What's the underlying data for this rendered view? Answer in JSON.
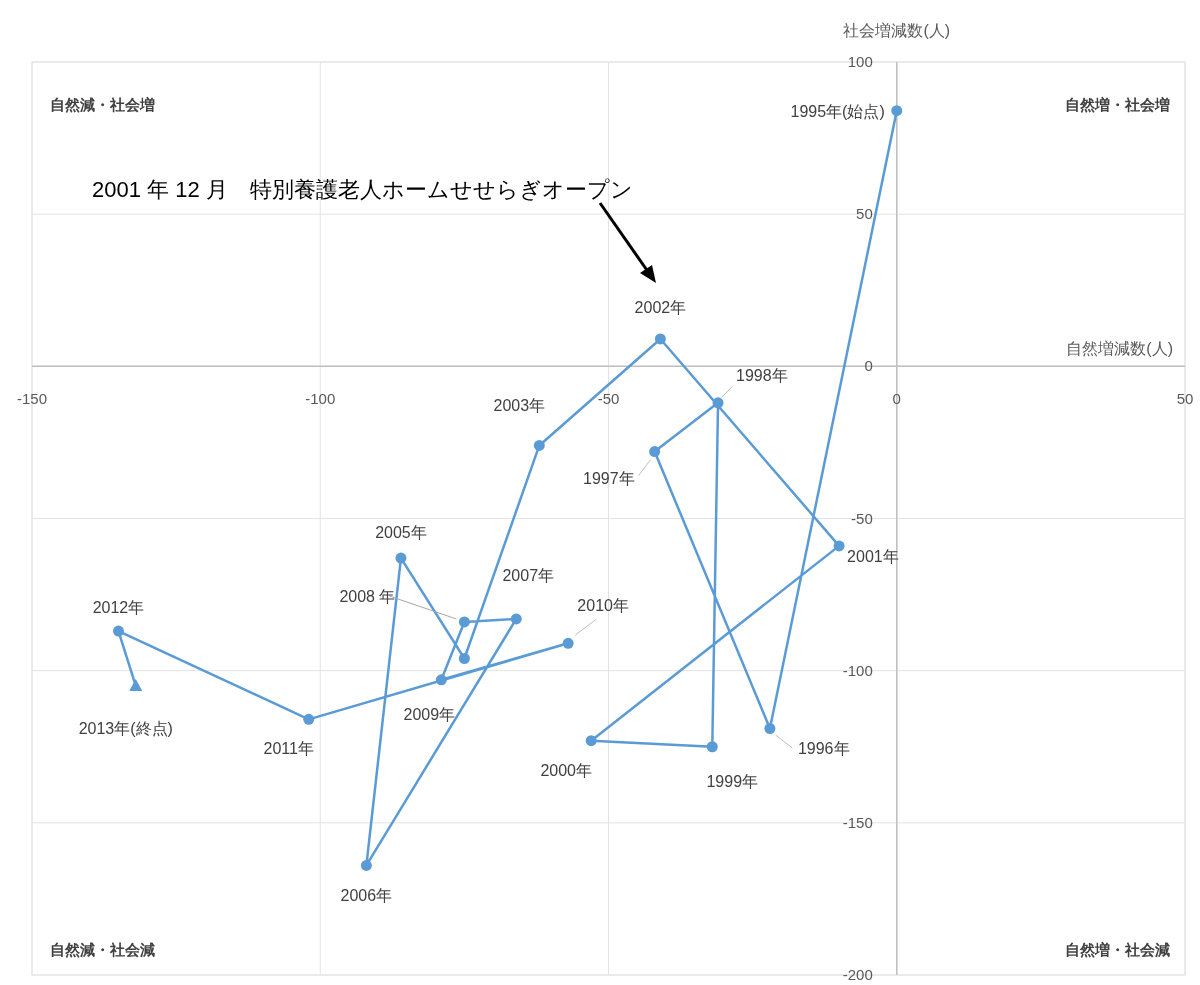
{
  "chart_data": {
    "type": "line",
    "xlabel": "自然増減数(人)",
    "ylabel": "社会増減数(人)",
    "x": [
      0,
      -22,
      -42,
      -31,
      -32,
      -53,
      -10,
      -41,
      -62,
      -75,
      -86,
      -92,
      -66,
      -75,
      -79,
      -57,
      -102,
      -135,
      -132
    ],
    "values": [
      84,
      -119,
      -28,
      -12,
      -125,
      -123,
      -59,
      9,
      -26,
      -96,
      -63,
      -164,
      -83,
      -84,
      -103,
      -91,
      -116,
      -87,
      -105
    ],
    "color": "#5b9bd5",
    "marker": "circle",
    "xlim": [
      -150,
      50
    ],
    "xticks": [
      -150,
      -100,
      -50,
      0,
      50
    ],
    "ylim": [
      -200,
      100
    ],
    "yticks": [
      -200,
      -150,
      -100,
      -50,
      0,
      50,
      100
    ],
    "grid": true,
    "annotations": [
      "自然減・社会増",
      "自然増・社会増",
      "自然減・社会減",
      "自然増・社会減",
      "2001 年 12 月　特別養護老人ホームせせらぎオープン",
      {
        "text": "1995年(始点)",
        "x": 0,
        "y": 84
      },
      {
        "text": "1996年",
        "x": -22,
        "y": -119
      },
      {
        "text": "1997年",
        "x": -42,
        "y": -28
      },
      {
        "text": "1998年",
        "x": -31,
        "y": -12
      },
      {
        "text": "1999年",
        "x": -32,
        "y": -125
      },
      {
        "text": "2000年",
        "x": -53,
        "y": -123
      },
      {
        "text": "2001年",
        "x": -10,
        "y": -59
      },
      {
        "text": "2002年",
        "x": -41,
        "y": 9
      },
      {
        "text": "2003年",
        "x": -62,
        "y": -26
      },
      {
        "text": "2005年",
        "x": -86,
        "y": -63
      },
      {
        "text": "2006年",
        "x": -92,
        "y": -164
      },
      {
        "text": "2007年",
        "x": -66,
        "y": -83
      },
      {
        "text": "2008 年",
        "x": -75,
        "y": -84
      },
      {
        "text": "2009年",
        "x": -79,
        "y": -103
      },
      {
        "text": "2010年",
        "x": -57,
        "y": -91
      },
      {
        "text": "2011年",
        "x": -102,
        "y": -116
      },
      {
        "text": "2012年",
        "x": -135,
        "y": -87
      },
      {
        "text": "2013年(終点)",
        "x": -132,
        "y": -105
      }
    ]
  }
}
